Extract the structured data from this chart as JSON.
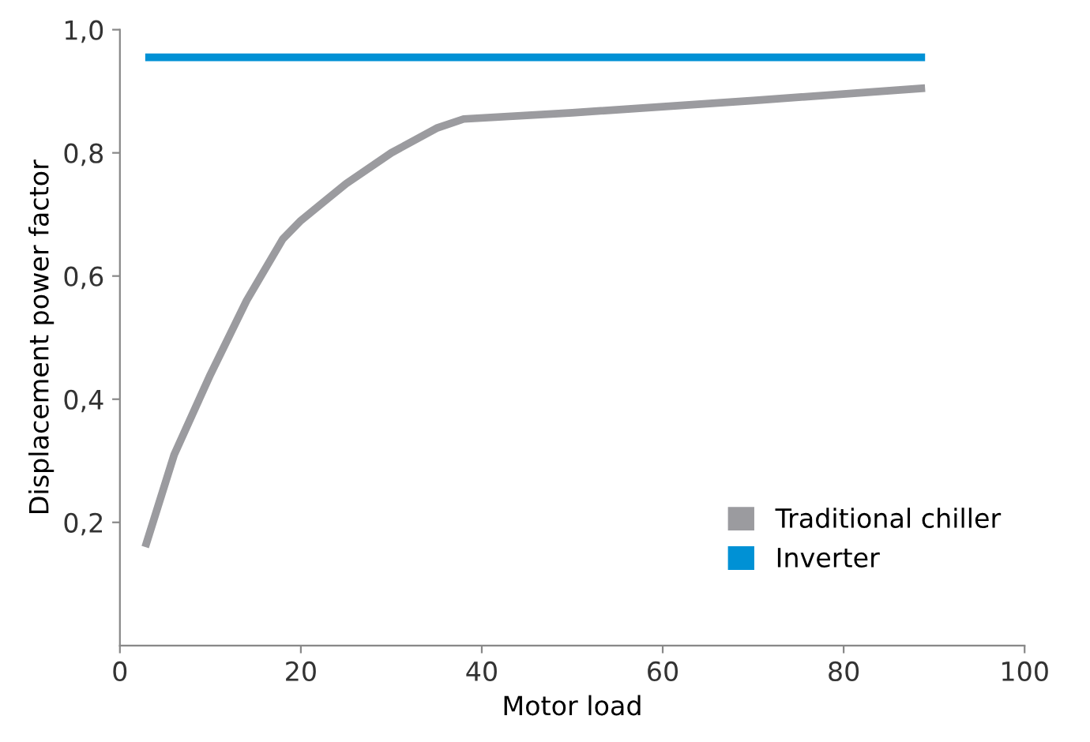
{
  "chart_data": {
    "type": "line",
    "xlabel": "Motor load",
    "ylabel": "Displacement power factor",
    "series": [
      {
        "name": "Traditional chiller",
        "color": "#9b9b9f",
        "x": [
          2.8,
          6,
          10,
          14,
          18,
          20,
          25,
          30,
          35,
          38,
          50,
          70,
          89
        ],
        "values": [
          0.16,
          0.31,
          0.44,
          0.56,
          0.66,
          0.69,
          0.75,
          0.8,
          0.84,
          0.855,
          0.865,
          0.885,
          0.905
        ]
      },
      {
        "name": "Inverter",
        "color": "#0091d5",
        "x": [
          2.8,
          89
        ],
        "values": [
          0.955,
          0.955
        ]
      }
    ],
    "xlim": [
      0,
      100
    ],
    "ylim": [
      0,
      1.0
    ],
    "xticks": [
      0,
      20,
      40,
      60,
      80,
      100
    ],
    "yticks": [
      {
        "value": 0.2,
        "label": "0,2"
      },
      {
        "value": 0.4,
        "label": "0,4"
      },
      {
        "value": 0.6,
        "label": "0,6"
      },
      {
        "value": 0.8,
        "label": "0,8"
      },
      {
        "value": 1.0,
        "label": "1,0"
      }
    ],
    "legend": "bottom right",
    "grid": false
  }
}
